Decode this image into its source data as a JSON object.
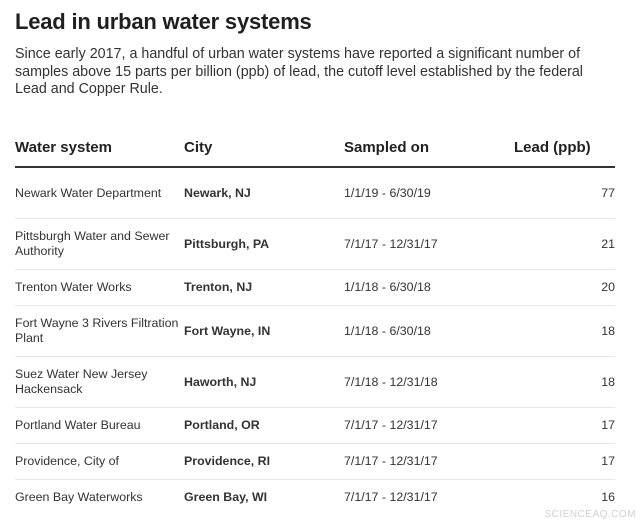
{
  "title": "Lead in urban water systems",
  "subtitle": "Since early 2017, a handful of urban water systems have reported a significant number of samples above 15 parts per billion (ppb) of lead, the cutoff level established by the federal Lead and Copper Rule.",
  "watermark": "SCIENCEAQ.COM",
  "chart_data": {
    "type": "table",
    "columns": [
      "Water system",
      "City",
      "Sampled on",
      "Lead (ppb)"
    ],
    "rows": [
      {
        "system": "Newark Water Department",
        "city": "Newark, NJ",
        "sampled": "1/1/19 - 6/30/19",
        "lead": 77
      },
      {
        "system": "Pittsburgh Water and Sewer Authority",
        "city": "Pittsburgh, PA",
        "sampled": "7/1/17 - 12/31/17",
        "lead": 21
      },
      {
        "system": "Trenton Water Works",
        "city": "Trenton, NJ",
        "sampled": "1/1/18 - 6/30/18",
        "lead": 20
      },
      {
        "system": "Fort Wayne 3 Rivers Filtration Plant",
        "city": "Fort Wayne, IN",
        "sampled": "1/1/18 - 6/30/18",
        "lead": 18
      },
      {
        "system": "Suez Water New Jersey Hackensack",
        "city": "Haworth, NJ",
        "sampled": "7/1/18 - 12/31/18",
        "lead": 18
      },
      {
        "system": "Portland Water Bureau",
        "city": "Portland, OR",
        "sampled": "7/1/17 - 12/31/17",
        "lead": 17
      },
      {
        "system": "Providence, City of",
        "city": "Providence, RI",
        "sampled": "7/1/17 - 12/31/17",
        "lead": 17
      },
      {
        "system": "Green Bay Waterworks",
        "city": "Green Bay, WI",
        "sampled": "7/1/17 - 12/31/17",
        "lead": 16
      }
    ]
  }
}
